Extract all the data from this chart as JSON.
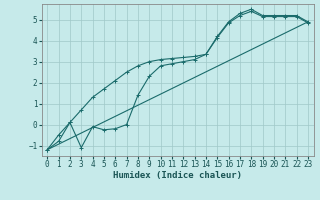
{
  "xlabel": "Humidex (Indice chaleur)",
  "background_color": "#c6eaea",
  "grid_color": "#a0c8c8",
  "line_color": "#1a6b6b",
  "xlim": [
    -0.5,
    23.5
  ],
  "ylim": [
    -1.5,
    5.75
  ],
  "xticks": [
    0,
    1,
    2,
    3,
    4,
    5,
    6,
    7,
    8,
    9,
    10,
    11,
    12,
    13,
    14,
    15,
    16,
    17,
    18,
    19,
    20,
    21,
    22,
    23
  ],
  "yticks": [
    -1,
    0,
    1,
    2,
    3,
    4,
    5
  ],
  "line1_x": [
    0,
    1,
    2,
    3,
    4,
    5,
    6,
    7,
    8,
    9,
    10,
    11,
    12,
    13,
    14,
    15,
    16,
    17,
    18,
    19,
    20,
    21,
    22,
    23
  ],
  "line1_y": [
    -1.2,
    -0.8,
    0.1,
    -1.1,
    -0.1,
    -0.25,
    -0.2,
    0.0,
    1.4,
    2.3,
    2.8,
    2.9,
    3.0,
    3.1,
    3.35,
    4.2,
    4.9,
    5.3,
    5.5,
    5.2,
    5.2,
    5.2,
    5.2,
    4.9
  ],
  "line2_x": [
    0,
    1,
    2,
    3,
    4,
    5,
    6,
    7,
    8,
    9,
    10,
    11,
    12,
    13,
    14,
    15,
    16,
    17,
    18,
    19,
    20,
    21,
    22,
    23
  ],
  "line2_y": [
    -1.2,
    -0.5,
    0.1,
    0.7,
    1.3,
    1.7,
    2.1,
    2.5,
    2.8,
    3.0,
    3.1,
    3.15,
    3.2,
    3.25,
    3.35,
    4.15,
    4.85,
    5.2,
    5.4,
    5.15,
    5.15,
    5.15,
    5.15,
    4.85
  ],
  "line3_x": [
    0,
    23
  ],
  "line3_y": [
    -1.2,
    4.9
  ]
}
